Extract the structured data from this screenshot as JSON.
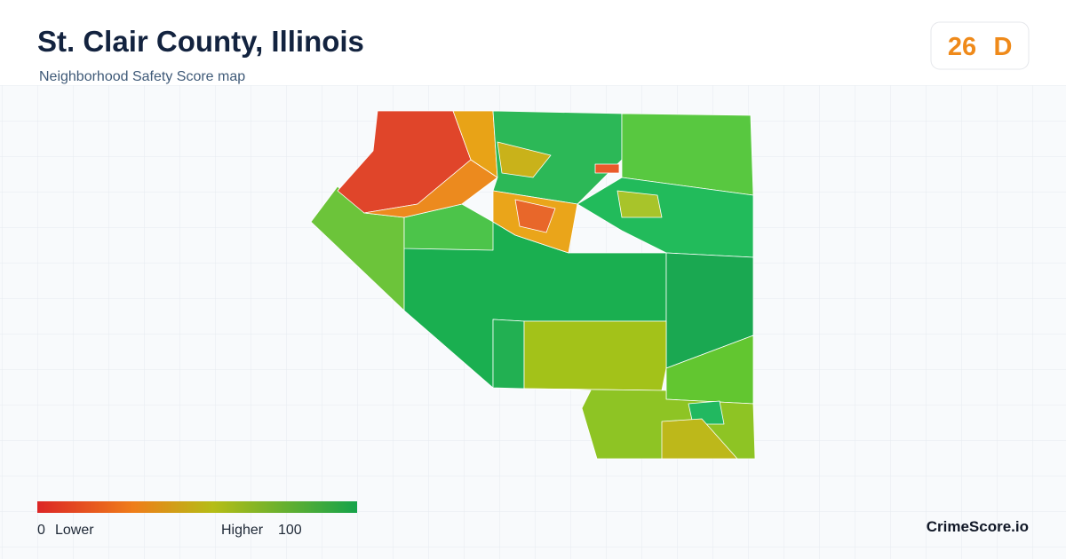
{
  "header": {
    "title": "St. Clair County, Illinois",
    "subtitle": "Neighborhood Safety Score map"
  },
  "score": {
    "value": 26,
    "grade": "D"
  },
  "legend": {
    "min": 0,
    "min_label": "Lower",
    "max_label": "Higher",
    "max": 100
  },
  "footer": {
    "brand": "CrimeScore.io"
  }
}
